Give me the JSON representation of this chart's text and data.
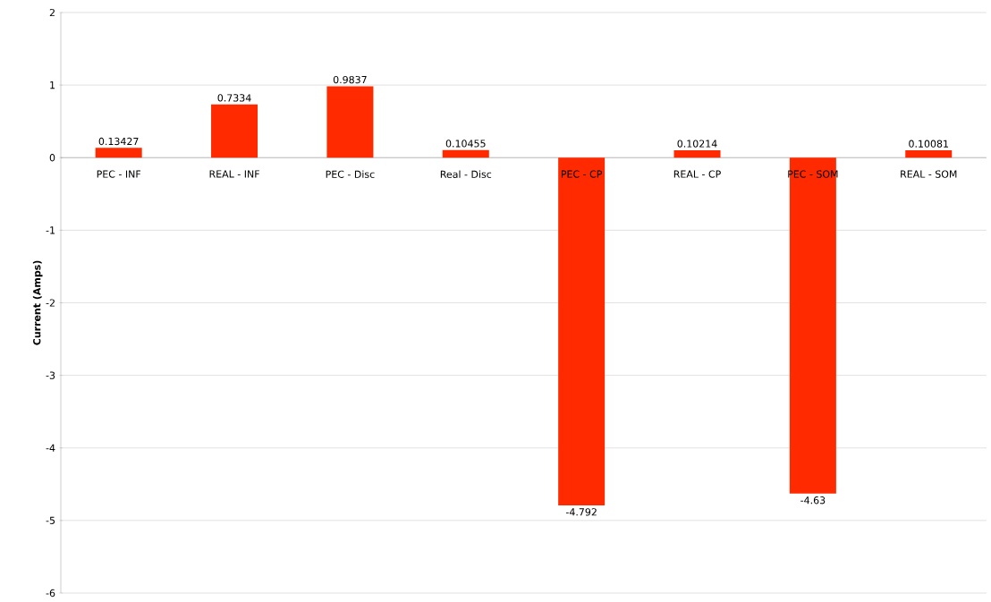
{
  "chart_data": {
    "type": "bar",
    "ylabel": "Current (Amps)",
    "categories": [
      "PEC - INF",
      "REAL - INF",
      "PEC - Disc",
      "Real - Disc",
      "PEC - CP",
      "REAL - CP",
      "PEC - SOM",
      "REAL - SOM"
    ],
    "values": [
      0.13427,
      0.7334,
      0.9837,
      0.10455,
      -4.792,
      0.10214,
      -4.63,
      0.10081
    ],
    "color": "#ff2a00",
    "ylim": [
      -6,
      2
    ],
    "yticks": [
      -6,
      -5,
      -4,
      -3,
      -2,
      -1,
      0,
      1,
      2
    ],
    "grid": "y",
    "data_labels": true
  }
}
